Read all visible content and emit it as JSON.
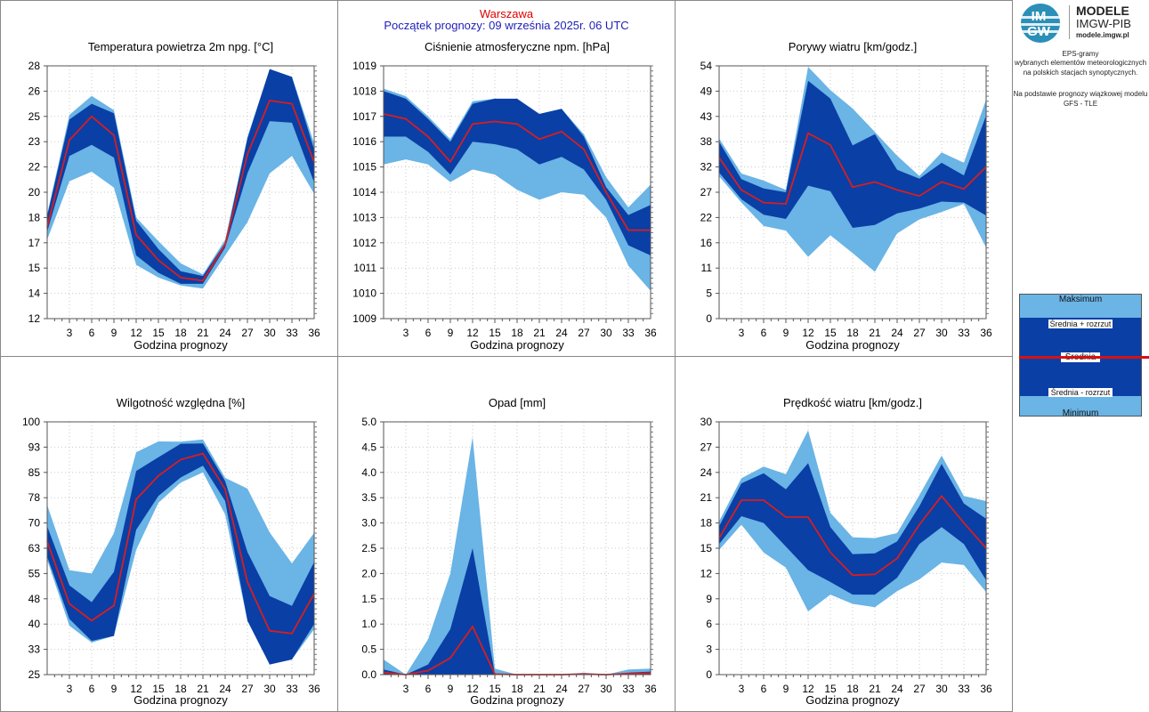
{
  "header": {
    "city": "Warszawa",
    "start": "Początek prognozy: 09 września 2025r. 06 UTC"
  },
  "xaxis_label": "Godzina prognozy",
  "logo": {
    "circle_top": "IM",
    "circle_bottom": "GW",
    "name1": "MODELE",
    "name2": "IMGW-PIB",
    "name3": "modele.imgw.pl"
  },
  "sidebar": {
    "line1": "EPS-gramy",
    "line2": "wybranych elementów meteorologicznych",
    "line3": "na polskich stacjach  synoptycznych.",
    "line4": "Na podstawie prognozy wiązkowej modelu",
    "line5": "GFS - TLE"
  },
  "legend": {
    "max": "Maksimum",
    "plus": "Średnia + rozrzut",
    "mean": "Średnia",
    "minus": "Średnia - rozrzut",
    "min": "Minimum"
  },
  "colors": {
    "light": "#6ab4e6",
    "dark": "#0a3fa6",
    "mean": "#d81e1e"
  },
  "chart_data": [
    {
      "type": "area",
      "title": "Temperatura powietrza 2m npg. [°C]",
      "x": [
        0,
        3,
        6,
        9,
        12,
        15,
        18,
        21,
        24,
        27,
        30,
        33,
        36
      ],
      "yticks": [
        "12",
        "14",
        "15",
        "17",
        "18",
        "20",
        "22",
        "23",
        "25",
        "26",
        "28"
      ],
      "ylim": [
        12,
        28
      ],
      "max": [
        18.6,
        24.9,
        26.1,
        25.2,
        18.4,
        16.9,
        15.5,
        14.8,
        17.0,
        23.5,
        27.8,
        27.3,
        23.1
      ],
      "upper": [
        18.5,
        24.6,
        25.6,
        25.0,
        18.2,
        16.4,
        15.0,
        14.7,
        16.8,
        23.4,
        27.8,
        27.3,
        22.7
      ],
      "mean": [
        17.8,
        23.3,
        24.8,
        23.6,
        17.3,
        15.7,
        14.6,
        14.4,
        16.7,
        22.4,
        25.8,
        25.6,
        21.9
      ],
      "lower": [
        17.5,
        22.3,
        23.0,
        22.2,
        16.0,
        14.9,
        14.2,
        14.2,
        16.5,
        21.2,
        24.5,
        24.4,
        20.6
      ],
      "min": [
        17.0,
        20.7,
        21.3,
        20.3,
        15.4,
        14.6,
        14.1,
        13.9,
        16.0,
        18.1,
        21.2,
        22.3,
        19.9
      ]
    },
    {
      "type": "area",
      "title": "Ciśnienie atmosferyczne npm. [hPa]",
      "x": [
        0,
        3,
        6,
        9,
        12,
        15,
        18,
        21,
        24,
        27,
        30,
        33,
        36
      ],
      "yticks": [
        "1009",
        "1010",
        "1011",
        "1012",
        "1013",
        "1014",
        "1015",
        "1016",
        "1017",
        "1018",
        "1019"
      ],
      "ylim": [
        1009,
        1019
      ],
      "max": [
        1018.1,
        1017.8,
        1017.0,
        1016.1,
        1017.6,
        1017.7,
        1017.6,
        1017.1,
        1017.3,
        1016.3,
        1014.6,
        1013.4,
        1014.3
      ],
      "upper": [
        1018.0,
        1017.7,
        1016.9,
        1016.0,
        1017.5,
        1017.7,
        1017.7,
        1017.1,
        1017.3,
        1016.2,
        1014.2,
        1013.1,
        1013.5
      ],
      "mean": [
        1017.1,
        1016.9,
        1016.2,
        1015.2,
        1016.7,
        1016.8,
        1016.7,
        1016.1,
        1016.4,
        1015.7,
        1014.0,
        1012.5,
        1012.5
      ],
      "lower": [
        1016.2,
        1016.2,
        1015.6,
        1014.7,
        1016.0,
        1015.9,
        1015.7,
        1015.1,
        1015.4,
        1014.9,
        1013.7,
        1011.9,
        1011.5
      ],
      "min": [
        1015.1,
        1015.3,
        1015.1,
        1014.4,
        1014.9,
        1014.7,
        1014.1,
        1013.7,
        1014.0,
        1013.9,
        1013.0,
        1011.1,
        1010.1
      ]
    },
    {
      "type": "area",
      "title": "Porywy wiatru [km/godz.]",
      "x": [
        0,
        3,
        6,
        9,
        12,
        15,
        18,
        21,
        24,
        27,
        30,
        33,
        36
      ],
      "yticks": [
        "0",
        "5",
        "11",
        "16",
        "22",
        "27",
        "32",
        "38",
        "43",
        "49",
        "54"
      ],
      "ylim": [
        0,
        54
      ],
      "max": [
        38.5,
        31.0,
        29.5,
        27.5,
        53.8,
        48.8,
        44.9,
        39.9,
        34.8,
        30.5,
        35.5,
        33.3,
        46.8
      ],
      "upper": [
        37.8,
        29.8,
        27.8,
        27.0,
        50.8,
        47.0,
        37.0,
        39.4,
        31.8,
        29.9,
        33.3,
        30.6,
        43.4
      ],
      "mean": [
        34.4,
        27.5,
        24.8,
        24.5,
        39.6,
        37.1,
        28.1,
        29.2,
        27.5,
        26.2,
        29.2,
        27.7,
        32.4
      ],
      "lower": [
        31.2,
        25.5,
        22.2,
        21.3,
        28.4,
        27.2,
        19.4,
        20.0,
        22.5,
        23.5,
        25.0,
        24.8,
        22.0
      ],
      "min": [
        30.4,
        24.8,
        19.8,
        18.8,
        13.2,
        17.8,
        14.0,
        10.0,
        18.2,
        21.2,
        22.8,
        24.5,
        15.2
      ]
    },
    {
      "type": "area",
      "title": "Wilgotność względna [%]",
      "x": [
        0,
        3,
        6,
        9,
        12,
        15,
        18,
        21,
        24,
        27,
        30,
        33,
        36
      ],
      "yticks": [
        "25",
        "33",
        "40",
        "48",
        "55",
        "63",
        "70",
        "78",
        "85",
        "93",
        "100"
      ],
      "ylim": [
        25,
        100
      ],
      "max": [
        75.3,
        56.0,
        55.0,
        67.0,
        91.0,
        94.2,
        94.1,
        94.8,
        83.4,
        80.2,
        67.2,
        58.0,
        67.1
      ],
      "upper": [
        69.0,
        51.5,
        46.5,
        55.5,
        85.4,
        89.5,
        93.5,
        93.6,
        82.4,
        61.4,
        48.3,
        45.4,
        58.4
      ],
      "mean": [
        64.5,
        46.0,
        41.0,
        45.5,
        77.0,
        84.0,
        88.8,
        90.6,
        80.0,
        52.5,
        38.0,
        37.2,
        49.0
      ],
      "lower": [
        60.0,
        41.5,
        35.0,
        36.5,
        68.0,
        78.0,
        83.5,
        87.0,
        76.5,
        41.0,
        28.0,
        29.5,
        40.0
      ],
      "min": [
        59.0,
        39.5,
        34.5,
        36.5,
        62.0,
        76.0,
        82.0,
        85.0,
        72.5,
        41.0,
        28.0,
        29.5,
        38.5
      ]
    },
    {
      "type": "area",
      "title": "Opad [mm]",
      "x": [
        0,
        3,
        6,
        9,
        12,
        15,
        18,
        21,
        24,
        27,
        30,
        33,
        36
      ],
      "yticks": [
        "0.0",
        "0.5",
        "1.0",
        "1.5",
        "2.0",
        "2.5",
        "3.0",
        "3.5",
        "4.0",
        "4.5",
        "5.0"
      ],
      "ylim": [
        0,
        5
      ],
      "max": [
        0.3,
        0.0,
        0.7,
        2.0,
        4.7,
        0.12,
        0.0,
        0.0,
        0.0,
        0.04,
        0.0,
        0.1,
        0.12
      ],
      "upper": [
        0.1,
        0.0,
        0.2,
        0.9,
        2.5,
        0.02,
        0.0,
        0.0,
        0.0,
        0.02,
        0.0,
        0.04,
        0.06
      ],
      "mean": [
        0.04,
        0.0,
        0.08,
        0.33,
        0.95,
        0.01,
        0.0,
        0.0,
        0.0,
        0.01,
        0.0,
        0.02,
        0.03
      ],
      "lower": [
        0.0,
        0.0,
        0.0,
        0.0,
        0.0,
        0.0,
        0.0,
        0.0,
        0.0,
        0.0,
        0.0,
        0.0,
        0.0
      ],
      "min": [
        0.0,
        0.0,
        0.0,
        0.0,
        0.0,
        0.0,
        0.0,
        0.0,
        0.0,
        0.0,
        0.0,
        0.0,
        0.0
      ]
    },
    {
      "type": "area",
      "title": "Prędkość wiatru [km/godz.]",
      "x": [
        0,
        3,
        6,
        9,
        12,
        15,
        18,
        21,
        24,
        27,
        30,
        33,
        36
      ],
      "yticks": [
        "0",
        "3",
        "6",
        "9",
        "12",
        "15",
        "18",
        "21",
        "24",
        "27",
        "30"
      ],
      "ylim": [
        0,
        30
      ],
      "max": [
        18.2,
        23.3,
        24.7,
        23.8,
        29.0,
        19.2,
        16.3,
        16.2,
        16.8,
        21.3,
        26.0,
        21.2,
        20.6
      ],
      "upper": [
        17.6,
        22.7,
        23.9,
        22.0,
        25.1,
        17.5,
        14.3,
        14.4,
        15.8,
        20.0,
        25.0,
        20.3,
        18.5
      ],
      "mean": [
        16.2,
        20.7,
        20.7,
        18.7,
        18.7,
        14.5,
        11.8,
        11.9,
        13.8,
        17.8,
        21.2,
        18.0,
        15.0
      ],
      "lower": [
        15.5,
        18.8,
        18.0,
        15.2,
        12.4,
        11.0,
        9.5,
        9.5,
        11.5,
        15.5,
        17.5,
        15.5,
        11.2
      ],
      "min": [
        14.8,
        17.8,
        14.5,
        12.7,
        7.5,
        9.5,
        8.4,
        8.0,
        9.9,
        11.3,
        13.3,
        13.0,
        9.8
      ]
    }
  ]
}
